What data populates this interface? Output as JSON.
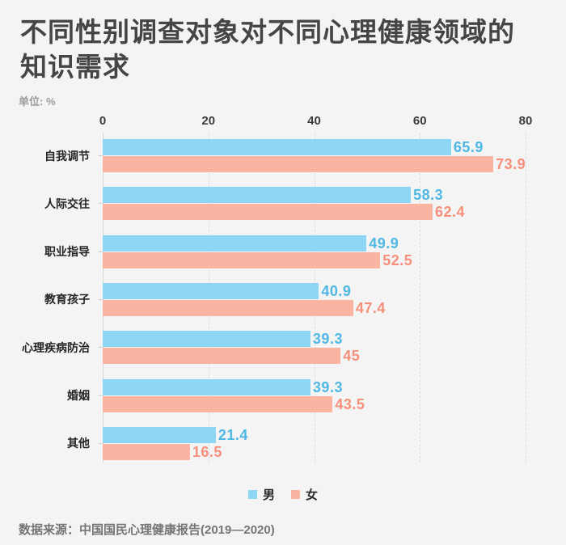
{
  "header": {
    "title_lines": [
      "不同性别调查对象对不同心理健康领域的",
      "知识需求"
    ],
    "unit_label": "单位: %"
  },
  "chart_data": {
    "type": "bar",
    "orientation": "horizontal",
    "title": "不同性别调查对象对不同心理健康领域的知识需求",
    "unit": "%",
    "categories": [
      "自我调节",
      "人际交往",
      "职业指导",
      "教育孩子",
      "心理疾病防治",
      "婚姻",
      "其他"
    ],
    "series": [
      {
        "key": "male",
        "name": "男",
        "color": "#8ed7f4",
        "label_color": "#4fb8e3",
        "values": [
          65.9,
          58.3,
          49.9,
          40.9,
          39.3,
          39.3,
          21.4
        ]
      },
      {
        "key": "female",
        "name": "女",
        "color": "#fcb4a2",
        "label_color": "#f7907a",
        "values": [
          73.9,
          62.4,
          52.5,
          47.4,
          45,
          43.5,
          16.5
        ]
      }
    ],
    "x_ticks": [
      0,
      20,
      40,
      60,
      80
    ],
    "xlim": [
      0,
      80
    ],
    "grid": "dashed-vertical-at-ticks",
    "legend_position": "bottom-center"
  },
  "footer": {
    "source": "数据来源：中国国民心理健康报告(2019—2020)"
  }
}
